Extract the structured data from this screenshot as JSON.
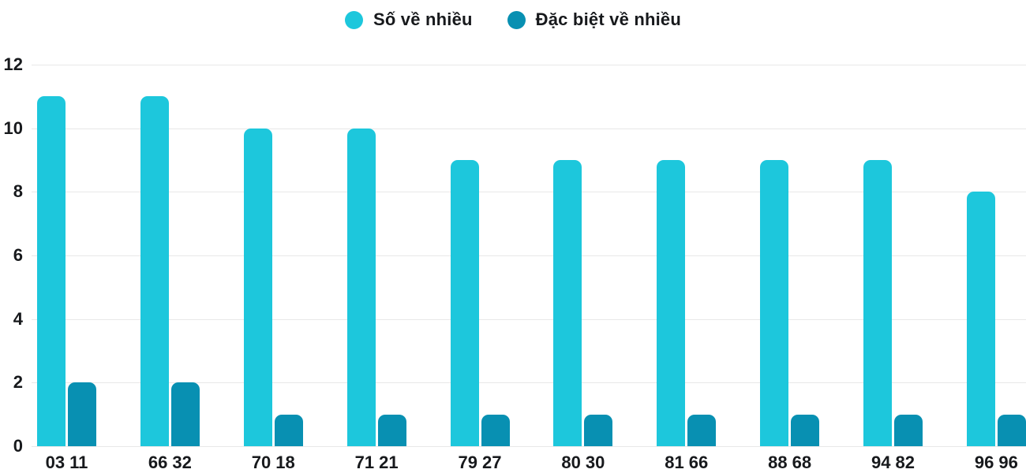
{
  "colors": {
    "series1": "#1dc7dc",
    "series2": "#0890b2",
    "grid": "#e8e8e8",
    "text": "#17191c"
  },
  "chart_data": {
    "type": "bar",
    "title": "",
    "xlabel": "",
    "ylabel": "",
    "categories": [
      "03 11",
      "66 32",
      "70 18",
      "71 21",
      "79 27",
      "80 30",
      "81 66",
      "88 68",
      "94 82",
      "96 96"
    ],
    "series": [
      {
        "name": "Số về nhiều",
        "color": "#1dc7dc",
        "values": [
          11,
          11,
          10,
          10,
          9,
          9,
          9,
          9,
          9,
          8
        ]
      },
      {
        "name": "Đặc biệt về nhiều",
        "color": "#0890b2",
        "values": [
          2,
          2,
          1,
          1,
          1,
          1,
          1,
          1,
          1,
          1
        ]
      }
    ],
    "ylim": [
      0,
      12
    ],
    "yticks": [
      0,
      2,
      4,
      6,
      8,
      10,
      12
    ],
    "grid": true,
    "legend_position": "top-center"
  }
}
